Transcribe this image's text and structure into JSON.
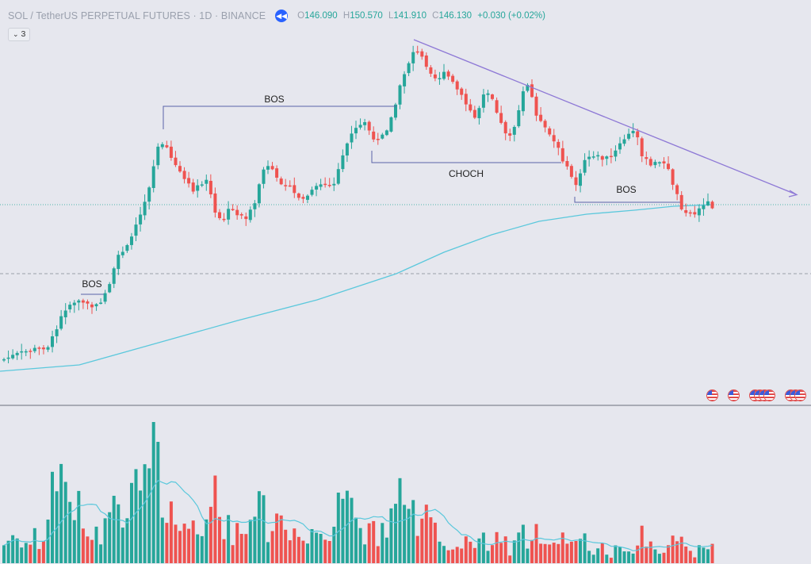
{
  "header": {
    "symbol": "SOL / TetherUS PERPETUAL FUTURES · 1D · BINANCE",
    "open_label": "O",
    "open": "146.090",
    "high_label": "H",
    "high": "150.570",
    "low_label": "L",
    "low": "141.910",
    "close_label": "C",
    "close": "146.130",
    "change": "+0.030 (+0.02%)"
  },
  "indicator_toggle": {
    "count": "3"
  },
  "annotations": {
    "bos_1": "BOS",
    "bos_2": "BOS",
    "choch": "CHOCH",
    "bos_3": "BOS"
  },
  "colors": {
    "up": "#26a69a",
    "down": "#ef5350",
    "ma": "#5bc8dc",
    "trendline": "#8e79d6",
    "structure": "#5a63a8",
    "background": "#e6e7ee"
  },
  "icons": {
    "rewind": "rewind-icon",
    "chevron": "chevron-down-icon",
    "event": "us-flag-icon"
  },
  "chart_data": {
    "type": "candlestick",
    "interval": "1D",
    "candles": [],
    "moving_average": "long-period MA rising from bottom-left to meet price near last candles",
    "volume_panel": true,
    "grid": false
  }
}
